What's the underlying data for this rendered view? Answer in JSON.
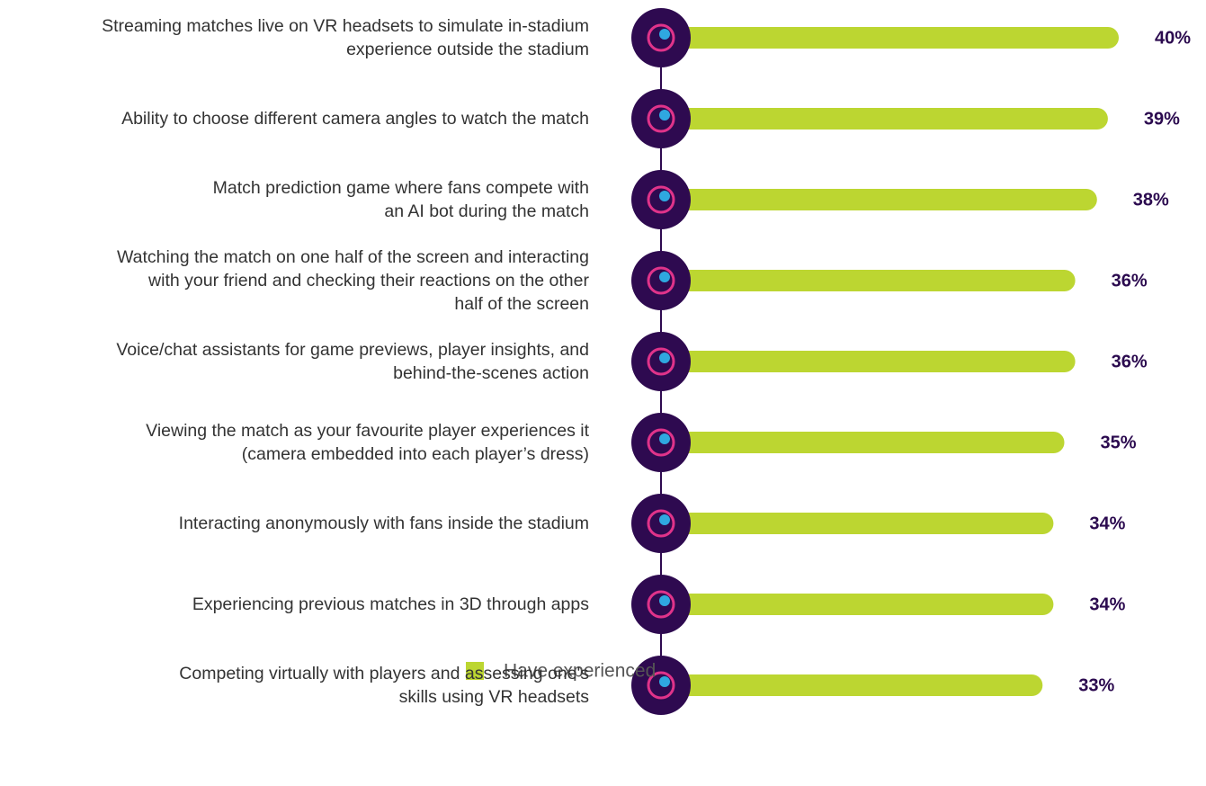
{
  "chart_data": {
    "type": "bar",
    "categories": [
      "Streaming matches live on VR headsets to simulate in-stadium\nexperience outside the stadium",
      "Ability to choose different camera angles to watch the match",
      "Match prediction game where fans compete with\nan AI bot during the match",
      "Watching the match on one half of the screen and interacting\nwith your friend and checking their reactions on the other\nhalf of the screen",
      "Voice/chat assistants for game previews, player insights, and\nbehind-the-scenes action",
      "Viewing the match as your favourite player experiences it\n(camera embedded into each player’s dress)",
      "Interacting anonymously with fans inside the stadium",
      "Experiencing previous matches in 3D through apps",
      "Competing virtually with players and assessing one's\nskills using VR headsets"
    ],
    "series": [
      {
        "name": "Have experienced",
        "color": "#bcd631",
        "values": [
          40,
          39,
          38,
          36,
          36,
          35,
          34,
          34,
          33
        ],
        "value_labels": [
          "40%",
          "39%",
          "38%",
          "36%",
          "36%",
          "35%",
          "34%",
          "34%",
          "33%"
        ]
      }
    ]
  }
}
